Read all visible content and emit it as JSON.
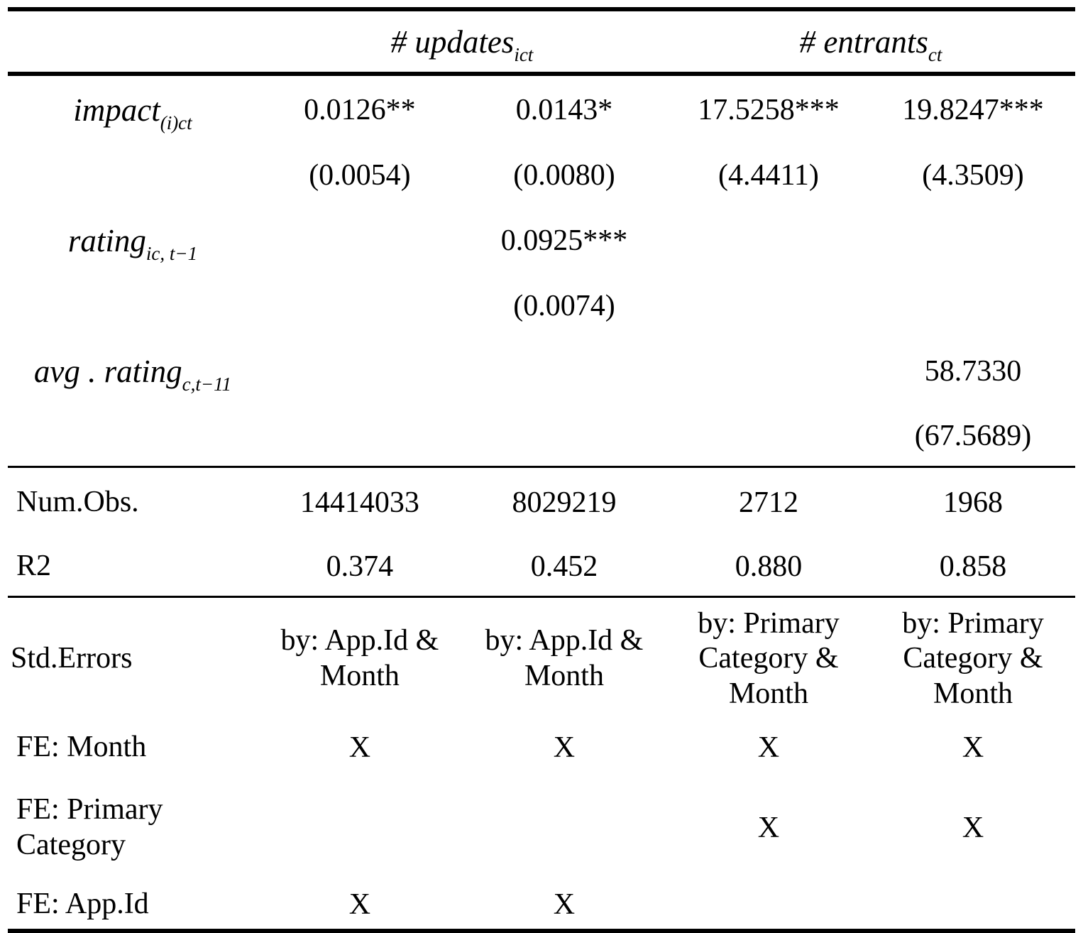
{
  "style": {
    "text_color": "#000000",
    "background_color": "#ffffff",
    "rule_color": "#000000"
  },
  "header": {
    "col_groups": [
      {
        "base": "# updates",
        "sub": "ict"
      },
      {
        "base": "# entrants",
        "sub": "ct"
      }
    ]
  },
  "coefficients": [
    {
      "label": {
        "base": "impact",
        "sub": "(i)ct"
      },
      "estimates": [
        "0.0126**",
        "0.0143*",
        "17.5258***",
        "19.8247***"
      ],
      "std_errors": [
        "(0.0054)",
        "(0.0080)",
        "(4.4411)",
        "(4.3509)"
      ]
    },
    {
      "label": {
        "base": "rating",
        "sub": "ic, t−1"
      },
      "estimates": [
        "",
        "0.0925***",
        "",
        ""
      ],
      "std_errors": [
        "",
        "(0.0074)",
        "",
        ""
      ]
    },
    {
      "label": {
        "base": "avg . rating",
        "sub": "c,t−11"
      },
      "estimates": [
        "",
        "",
        "",
        "58.7330"
      ],
      "std_errors": [
        "",
        "",
        "",
        "(67.5689)"
      ]
    }
  ],
  "stats": [
    {
      "label": "Num.Obs.",
      "values": [
        "14414033",
        "8029219",
        "2712",
        "1968"
      ]
    },
    {
      "label": "R2",
      "values": [
        "0.374",
        "0.452",
        "0.880",
        "0.858"
      ]
    }
  ],
  "footer": [
    {
      "label": "Std.Errors",
      "values": [
        "by: App.Id & Month",
        "by: App.Id & Month",
        "by: Primary Category & Month",
        "by: Primary Category & Month"
      ]
    },
    {
      "label": "FE: Month",
      "values": [
        "X",
        "X",
        "X",
        "X"
      ]
    },
    {
      "label": "FE: Primary Category",
      "values": [
        "",
        "",
        "X",
        "X"
      ]
    },
    {
      "label": "FE: App.Id",
      "values": [
        "X",
        "X",
        "",
        ""
      ]
    }
  ]
}
